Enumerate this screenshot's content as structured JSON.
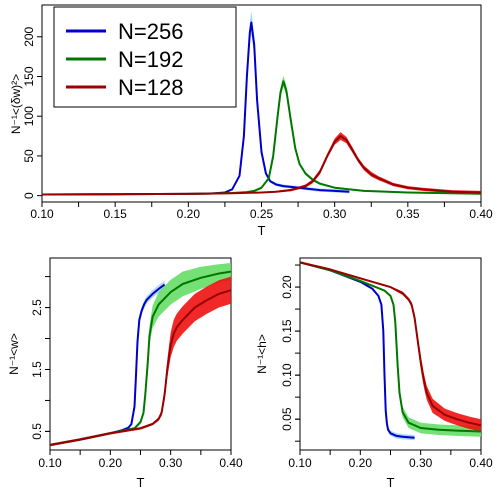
{
  "colors": {
    "N256": "#0000cc",
    "N256_band": "#9fd3f0",
    "N192": "#007700",
    "N192_band": "#66dd66",
    "N128": "#990000",
    "N128_band": "#ee1111"
  },
  "chart_data": [
    {
      "type": "line",
      "title": "",
      "xlabel": "T",
      "ylabel": "N⁻¹<(δw)²>",
      "xlim": [
        0.1,
        0.4
      ],
      "ylim": [
        -8,
        240
      ],
      "xticks": [
        "0.10",
        "0.15",
        "0.20",
        "0.25",
        "0.30",
        "0.35",
        "0.40"
      ],
      "yticks": [
        "0",
        "50",
        "100",
        "150",
        "200"
      ],
      "legend": {
        "placement": "top-left",
        "entries": [
          "N=256",
          "N=192",
          "N=128"
        ]
      },
      "grid": false,
      "series": [
        {
          "name": "N=256",
          "x": [
            0.1,
            0.15,
            0.2,
            0.215,
            0.225,
            0.23,
            0.235,
            0.238,
            0.24,
            0.242,
            0.243,
            0.245,
            0.247,
            0.25,
            0.253,
            0.256,
            0.26,
            0.265,
            0.27,
            0.28,
            0.29,
            0.3,
            0.31
          ],
          "y": [
            1.5,
            1.8,
            2.2,
            2.6,
            4,
            8,
            25,
            75,
            150,
            205,
            218,
            190,
            120,
            55,
            28,
            18,
            14,
            12,
            11,
            9,
            7,
            6,
            5
          ],
          "band": [
            0,
            0,
            0,
            0,
            0.5,
            1,
            2,
            5,
            8,
            12,
            15,
            12,
            8,
            4,
            3,
            2,
            2,
            2,
            2,
            2,
            2,
            2,
            2
          ]
        },
        {
          "name": "N=192",
          "x": [
            0.1,
            0.15,
            0.2,
            0.23,
            0.24,
            0.245,
            0.25,
            0.255,
            0.258,
            0.261,
            0.263,
            0.265,
            0.267,
            0.27,
            0.273,
            0.276,
            0.28,
            0.285,
            0.29,
            0.3,
            0.32,
            0.35,
            0.38,
            0.4
          ],
          "y": [
            1.5,
            1.8,
            2.2,
            3.3,
            4.5,
            6,
            10,
            22,
            50,
            100,
            130,
            144,
            132,
            95,
            60,
            40,
            28,
            20,
            15,
            10,
            6,
            4,
            3,
            2.5
          ],
          "band": [
            0,
            0,
            0,
            0,
            0.5,
            1,
            1.5,
            2,
            4,
            5,
            6,
            7,
            6,
            4,
            3,
            2,
            2,
            2,
            1.5,
            1,
            1,
            1,
            1,
            1
          ]
        },
        {
          "name": "N=128",
          "x": [
            0.1,
            0.15,
            0.2,
            0.23,
            0.25,
            0.26,
            0.27,
            0.28,
            0.285,
            0.29,
            0.295,
            0.3,
            0.304,
            0.308,
            0.312,
            0.316,
            0.32,
            0.325,
            0.33,
            0.34,
            0.35,
            0.36,
            0.38,
            0.4
          ],
          "y": [
            1.5,
            1.8,
            2.2,
            3.0,
            4.0,
            5.0,
            7.0,
            12,
            18,
            30,
            50,
            68,
            75,
            70,
            58,
            45,
            35,
            27,
            22,
            14,
            10,
            8,
            5,
            4
          ],
          "band": [
            0,
            0,
            0,
            0.5,
            0.5,
            1,
            1.5,
            2,
            2.5,
            3,
            3,
            4,
            5,
            4,
            3.5,
            3,
            3,
            3,
            2.5,
            2,
            2,
            2,
            2,
            2
          ]
        }
      ]
    },
    {
      "type": "line",
      "title": "",
      "xlabel": "T",
      "ylabel": "N⁻¹<w>",
      "xlim": [
        0.1,
        0.4
      ],
      "ylim": [
        0.2,
        3.3
      ],
      "xticks": [
        "0.10",
        "0.20",
        "0.30",
        "0.40"
      ],
      "yticks": [
        "0.5",
        "1.5",
        "2.5"
      ],
      "grid": false,
      "series": [
        {
          "name": "N=256",
          "x": [
            0.1,
            0.15,
            0.2,
            0.22,
            0.23,
            0.235,
            0.24,
            0.242,
            0.245,
            0.248,
            0.252,
            0.256,
            0.26,
            0.27,
            0.28,
            0.29
          ],
          "y": [
            0.28,
            0.37,
            0.47,
            0.52,
            0.56,
            0.62,
            0.9,
            1.3,
            1.95,
            2.3,
            2.45,
            2.55,
            2.62,
            2.72,
            2.8,
            2.87
          ],
          "band": [
            0.02,
            0.02,
            0.02,
            0.02,
            0.02,
            0.03,
            0.05,
            0.08,
            0.1,
            0.08,
            0.07,
            0.06,
            0.06,
            0.06,
            0.06,
            0.06
          ]
        },
        {
          "name": "N=192",
          "x": [
            0.1,
            0.15,
            0.2,
            0.24,
            0.25,
            0.255,
            0.258,
            0.262,
            0.265,
            0.27,
            0.28,
            0.3,
            0.32,
            0.35,
            0.38,
            0.4
          ],
          "y": [
            0.28,
            0.37,
            0.47,
            0.55,
            0.65,
            0.8,
            1.1,
            1.6,
            2.05,
            2.35,
            2.55,
            2.75,
            2.88,
            2.98,
            3.05,
            3.08
          ],
          "band": [
            0.02,
            0.02,
            0.02,
            0.02,
            0.03,
            0.05,
            0.06,
            0.1,
            0.15,
            0.18,
            0.2,
            0.2,
            0.2,
            0.18,
            0.15,
            0.14
          ]
        },
        {
          "name": "N=128",
          "x": [
            0.1,
            0.15,
            0.2,
            0.25,
            0.27,
            0.28,
            0.285,
            0.29,
            0.295,
            0.3,
            0.305,
            0.31,
            0.32,
            0.34,
            0.36,
            0.38,
            0.4
          ],
          "y": [
            0.28,
            0.37,
            0.47,
            0.55,
            0.62,
            0.7,
            0.8,
            1.1,
            1.55,
            1.9,
            2.08,
            2.18,
            2.3,
            2.5,
            2.62,
            2.72,
            2.78
          ],
          "band": [
            0.02,
            0.02,
            0.02,
            0.02,
            0.02,
            0.03,
            0.05,
            0.1,
            0.15,
            0.2,
            0.22,
            0.22,
            0.22,
            0.22,
            0.22,
            0.22,
            0.22
          ]
        }
      ]
    },
    {
      "type": "line",
      "title": "",
      "xlabel": "T",
      "ylabel": "N⁻¹<h>",
      "xlim": [
        0.1,
        0.4
      ],
      "ylim": [
        0.015,
        0.233
      ],
      "xticks": [
        "0.10",
        "0.20",
        "0.30",
        "0.40"
      ],
      "yticks": [
        "0.05",
        "0.10",
        "0.15",
        "0.20"
      ],
      "grid": false,
      "series": [
        {
          "name": "N=256",
          "x": [
            0.1,
            0.15,
            0.2,
            0.22,
            0.23,
            0.235,
            0.238,
            0.24,
            0.242,
            0.244,
            0.246,
            0.25,
            0.26,
            0.27,
            0.29
          ],
          "y": [
            0.228,
            0.219,
            0.206,
            0.198,
            0.19,
            0.18,
            0.15,
            0.1,
            0.06,
            0.045,
            0.038,
            0.034,
            0.031,
            0.03,
            0.029
          ],
          "band": [
            0.001,
            0.001,
            0.001,
            0.001,
            0.001,
            0.002,
            0.004,
            0.006,
            0.005,
            0.004,
            0.003,
            0.003,
            0.003,
            0.003,
            0.003
          ]
        },
        {
          "name": "N=192",
          "x": [
            0.1,
            0.15,
            0.2,
            0.24,
            0.25,
            0.255,
            0.258,
            0.262,
            0.265,
            0.27,
            0.28,
            0.3,
            0.33,
            0.36,
            0.4
          ],
          "y": [
            0.228,
            0.219,
            0.207,
            0.196,
            0.19,
            0.18,
            0.16,
            0.11,
            0.08,
            0.058,
            0.046,
            0.04,
            0.038,
            0.037,
            0.036
          ],
          "band": [
            0.001,
            0.001,
            0.001,
            0.001,
            0.001,
            0.002,
            0.003,
            0.005,
            0.006,
            0.006,
            0.006,
            0.006,
            0.006,
            0.006,
            0.006
          ]
        },
        {
          "name": "N=128",
          "x": [
            0.1,
            0.15,
            0.2,
            0.25,
            0.27,
            0.28,
            0.285,
            0.29,
            0.295,
            0.3,
            0.305,
            0.31,
            0.32,
            0.34,
            0.36,
            0.38,
            0.4
          ],
          "y": [
            0.228,
            0.22,
            0.21,
            0.2,
            0.193,
            0.186,
            0.18,
            0.165,
            0.14,
            0.115,
            0.095,
            0.08,
            0.065,
            0.055,
            0.05,
            0.046,
            0.043
          ],
          "band": [
            0.001,
            0.001,
            0.001,
            0.001,
            0.002,
            0.002,
            0.003,
            0.005,
            0.007,
            0.008,
            0.008,
            0.008,
            0.008,
            0.007,
            0.007,
            0.007,
            0.007
          ]
        }
      ]
    }
  ]
}
